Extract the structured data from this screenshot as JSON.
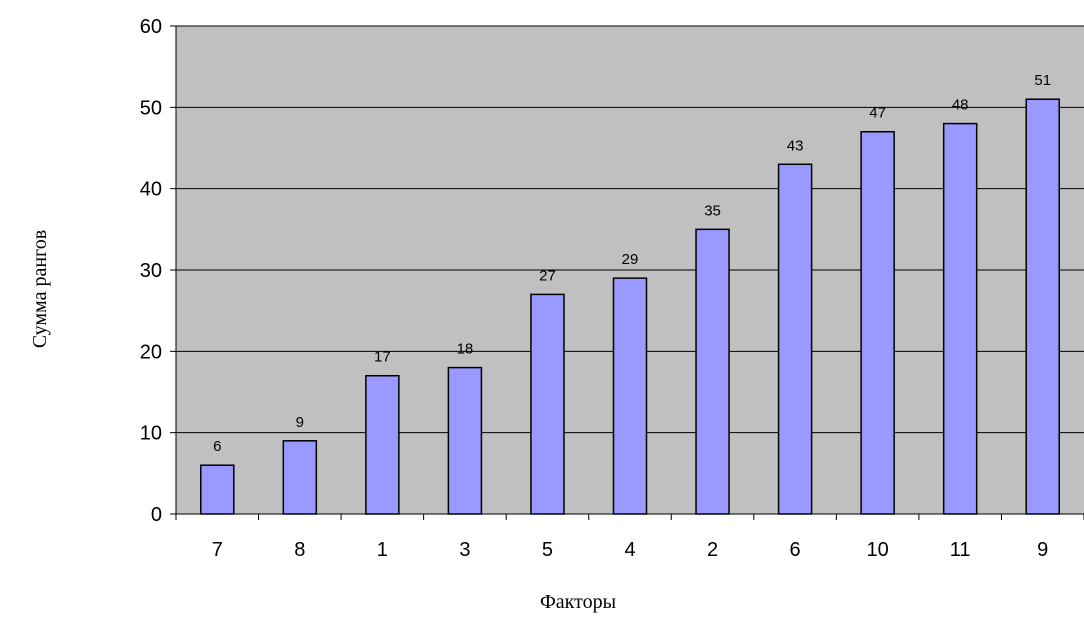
{
  "chart_data": {
    "type": "bar",
    "title": "",
    "xlabel": "Факторы",
    "ylabel": "Сумма рангов",
    "categories": [
      "7",
      "8",
      "1",
      "3",
      "5",
      "4",
      "2",
      "6",
      "10",
      "11",
      "9"
    ],
    "values": [
      6,
      9,
      17,
      18,
      27,
      29,
      35,
      43,
      47,
      48,
      51
    ],
    "data_labels": [
      "6",
      "9",
      "17",
      "18",
      "27",
      "29",
      "35",
      "43",
      "47",
      "48",
      "51"
    ],
    "ylim": [
      0,
      60
    ],
    "yticks": [
      "0",
      "10",
      "20",
      "30",
      "40",
      "50",
      "60"
    ],
    "grid": true,
    "legend": "none",
    "colors": {
      "plot_background": "#c0c0c0",
      "bar_fill": "#9999ff",
      "bar_stroke": "#000000",
      "gridline": "#000000"
    }
  }
}
